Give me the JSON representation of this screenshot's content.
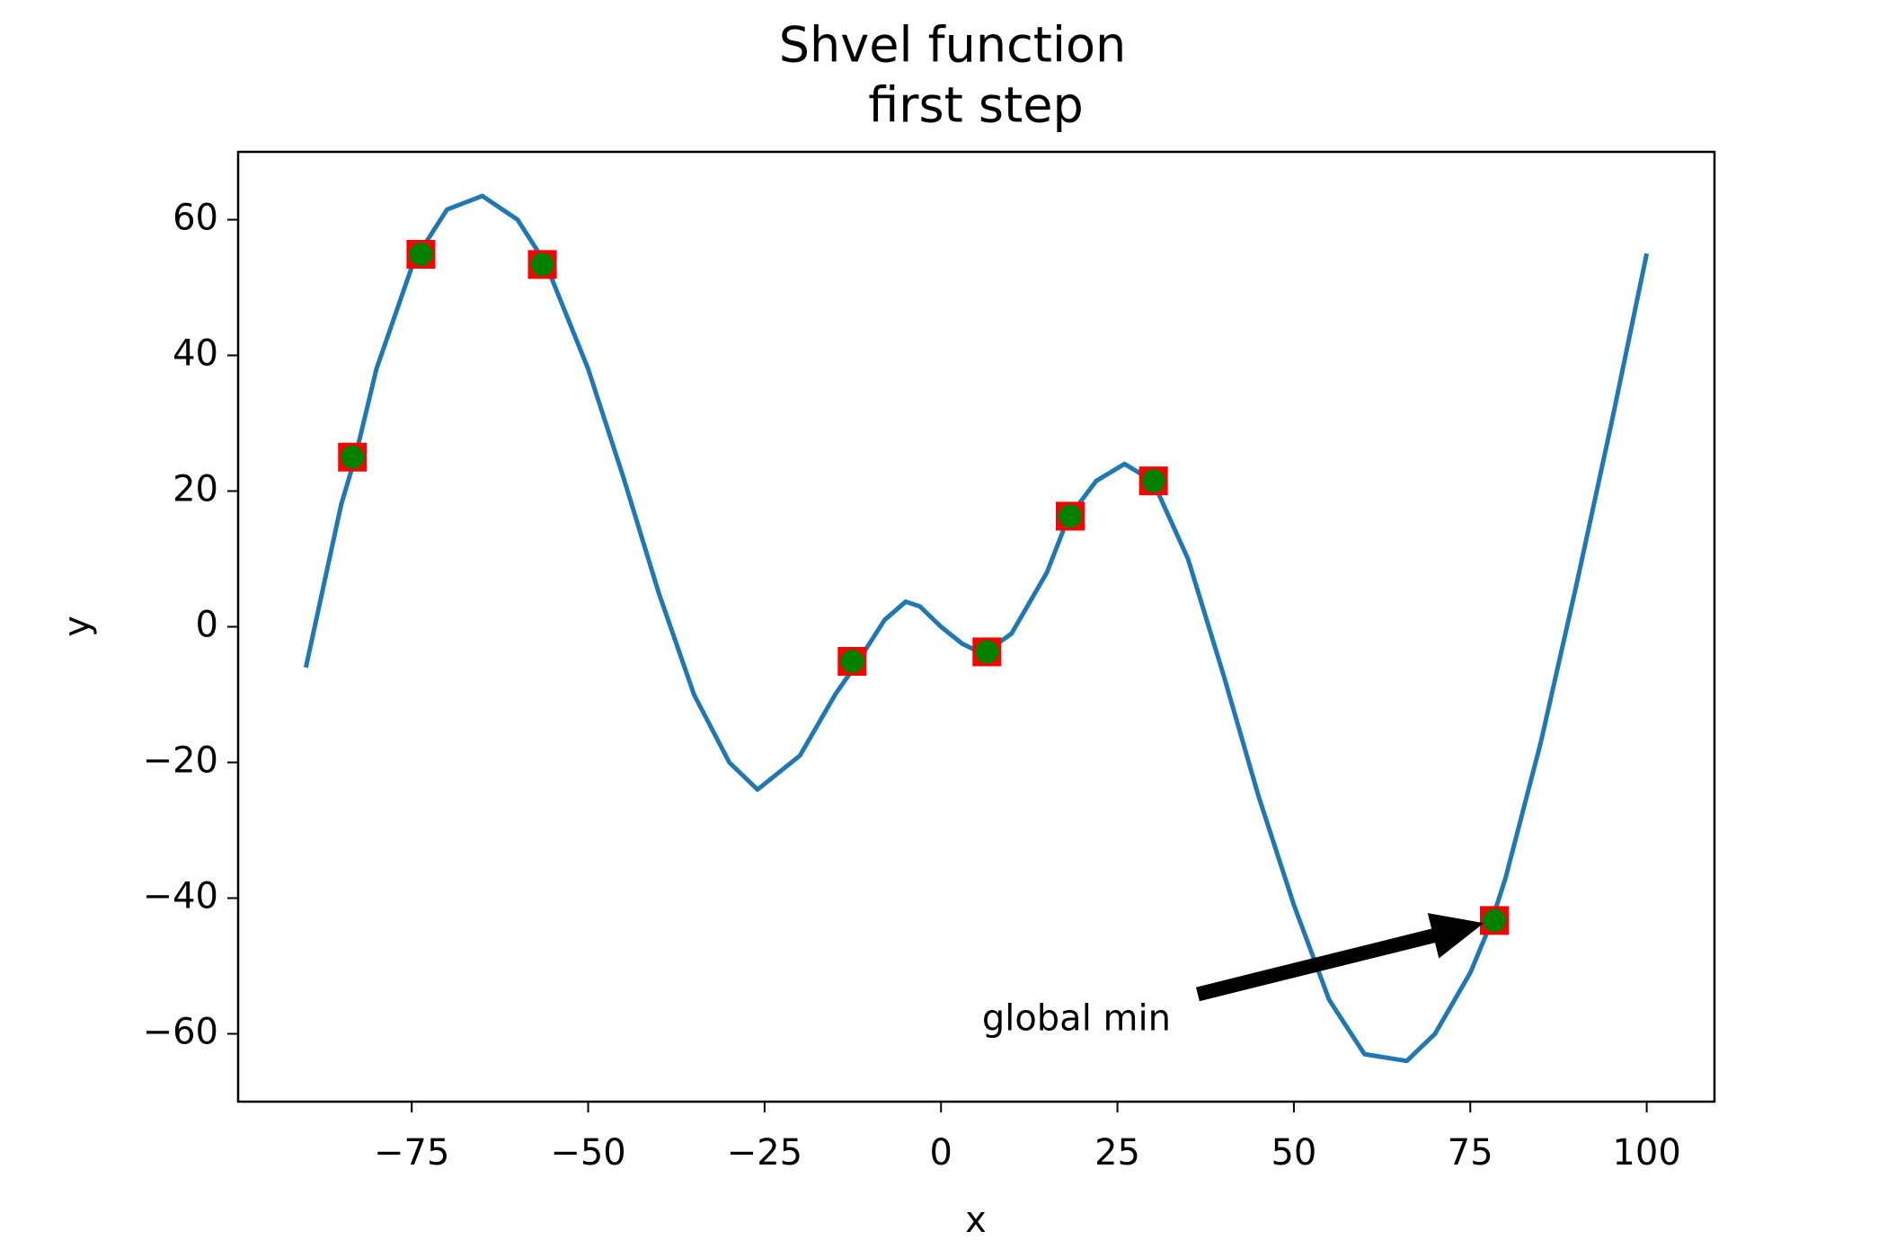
{
  "chart_data": {
    "type": "line",
    "title": "Shvel function",
    "subtitle": "first step",
    "subtitle_color": "#ff0000",
    "x_label": "x",
    "y_label": "y",
    "color": "#1f77b4",
    "x": [
      -90,
      -85,
      -83,
      -80,
      -75,
      -74,
      -70,
      -65,
      -60,
      -56,
      -50,
      -45,
      -40,
      -35,
      -30,
      -26,
      -20,
      -15,
      -12,
      -8,
      -5,
      -3,
      0,
      3,
      6,
      10,
      15,
      18,
      22,
      26,
      30,
      35,
      40,
      45,
      50,
      55,
      60,
      66,
      70,
      75,
      78,
      80,
      85,
      90,
      95,
      100
    ],
    "values": [
      -6,
      18,
      25,
      38,
      53,
      55,
      61.5,
      63.5,
      60,
      53.5,
      38,
      22,
      5,
      -10,
      -20,
      -24,
      -19,
      -10,
      -5.5,
      1,
      3.7,
      3,
      0,
      -2.5,
      -4,
      -1,
      8,
      16,
      21.5,
      24,
      21.5,
      10,
      -7,
      -25,
      -41,
      -55,
      -63,
      -64,
      -60,
      -51,
      -43.5,
      -37,
      -17,
      6,
      30,
      55
    ],
    "points": {
      "x": [
        -83.4,
        -73.7,
        -56.5,
        -12.6,
        6.5,
        18.3,
        30.1,
        78.4
      ],
      "values": [
        25.0,
        54.9,
        53.4,
        -5.1,
        -3.7,
        16.3,
        21.5,
        -43.3
      ],
      "color": "#008000",
      "edgecolor": "#ff0000"
    },
    "annotations": [
      {
        "text": "global min",
        "xy": [
          78.4,
          -43.3
        ]
      }
    ],
    "xlim": [
      -99.6,
      109.6
    ],
    "ylim": [
      -70,
      70
    ],
    "xticks": [
      {
        "value": -75,
        "label": "−75"
      },
      {
        "value": -50,
        "label": "−50"
      },
      {
        "value": -25,
        "label": "−25"
      },
      0,
      25,
      50,
      75,
      100
    ],
    "yticks": [
      {
        "value": -60,
        "label": "−60"
      },
      {
        "value": -40,
        "label": "−40"
      },
      {
        "value": -20,
        "label": "−20"
      },
      0,
      20,
      40,
      60
    ],
    "grid": false
  }
}
